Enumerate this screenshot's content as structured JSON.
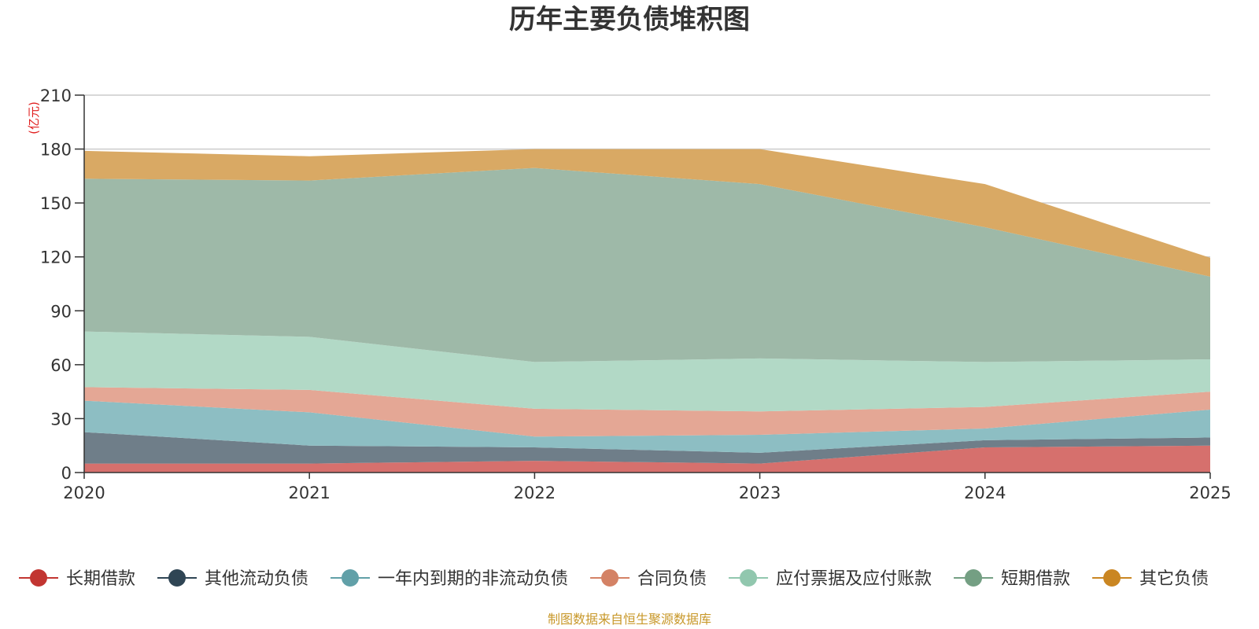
{
  "chart_data": {
    "type": "area",
    "stacked": true,
    "title": "历年主要负债堆积图",
    "unit_label": "(亿元)",
    "x": [
      "2020",
      "2021",
      "2022",
      "2023",
      "2024",
      "2025"
    ],
    "ylim": [
      0,
      210
    ],
    "yticks": [
      0,
      30,
      60,
      90,
      120,
      150,
      180,
      210
    ],
    "grid": true,
    "legend_position": "bottom",
    "series": [
      {
        "name": "长期借款",
        "values": [
          5,
          5,
          6.5,
          5,
          14,
          15
        ],
        "color": "#c23531",
        "fill": "#d6706d"
      },
      {
        "name": "其他流动负债",
        "values": [
          17.5,
          10,
          7.5,
          6,
          4,
          4.5
        ],
        "color": "#2f4554",
        "fill": "#6f7e89"
      },
      {
        "name": "一年内到期的非流动负债",
        "values": [
          17.5,
          18.5,
          6,
          10,
          6.5,
          15.5
        ],
        "color": "#61a0a8",
        "fill": "#8dbec3"
      },
      {
        "name": "合同负债",
        "values": [
          7.5,
          12.5,
          15.5,
          13,
          12,
          10
        ],
        "color": "#d48265",
        "fill": "#e4a795"
      },
      {
        "name": "应付票据及应付账款",
        "values": [
          31,
          29.5,
          26,
          29.5,
          25,
          18
        ],
        "color": "#91c7ae",
        "fill": "#b2d9c6"
      },
      {
        "name": "短期借款",
        "values": [
          85,
          87,
          108,
          97,
          75,
          46
        ],
        "color": "#749f83",
        "fill": "#9eb9a8"
      },
      {
        "name": "其它负债",
        "values": [
          15.5,
          13.5,
          10.5,
          19.5,
          24,
          10.5
        ],
        "color": "#ca8622",
        "fill": "#d9a964"
      }
    ]
  },
  "footer": {
    "source": "制图数据来自恒生聚源数据库"
  }
}
